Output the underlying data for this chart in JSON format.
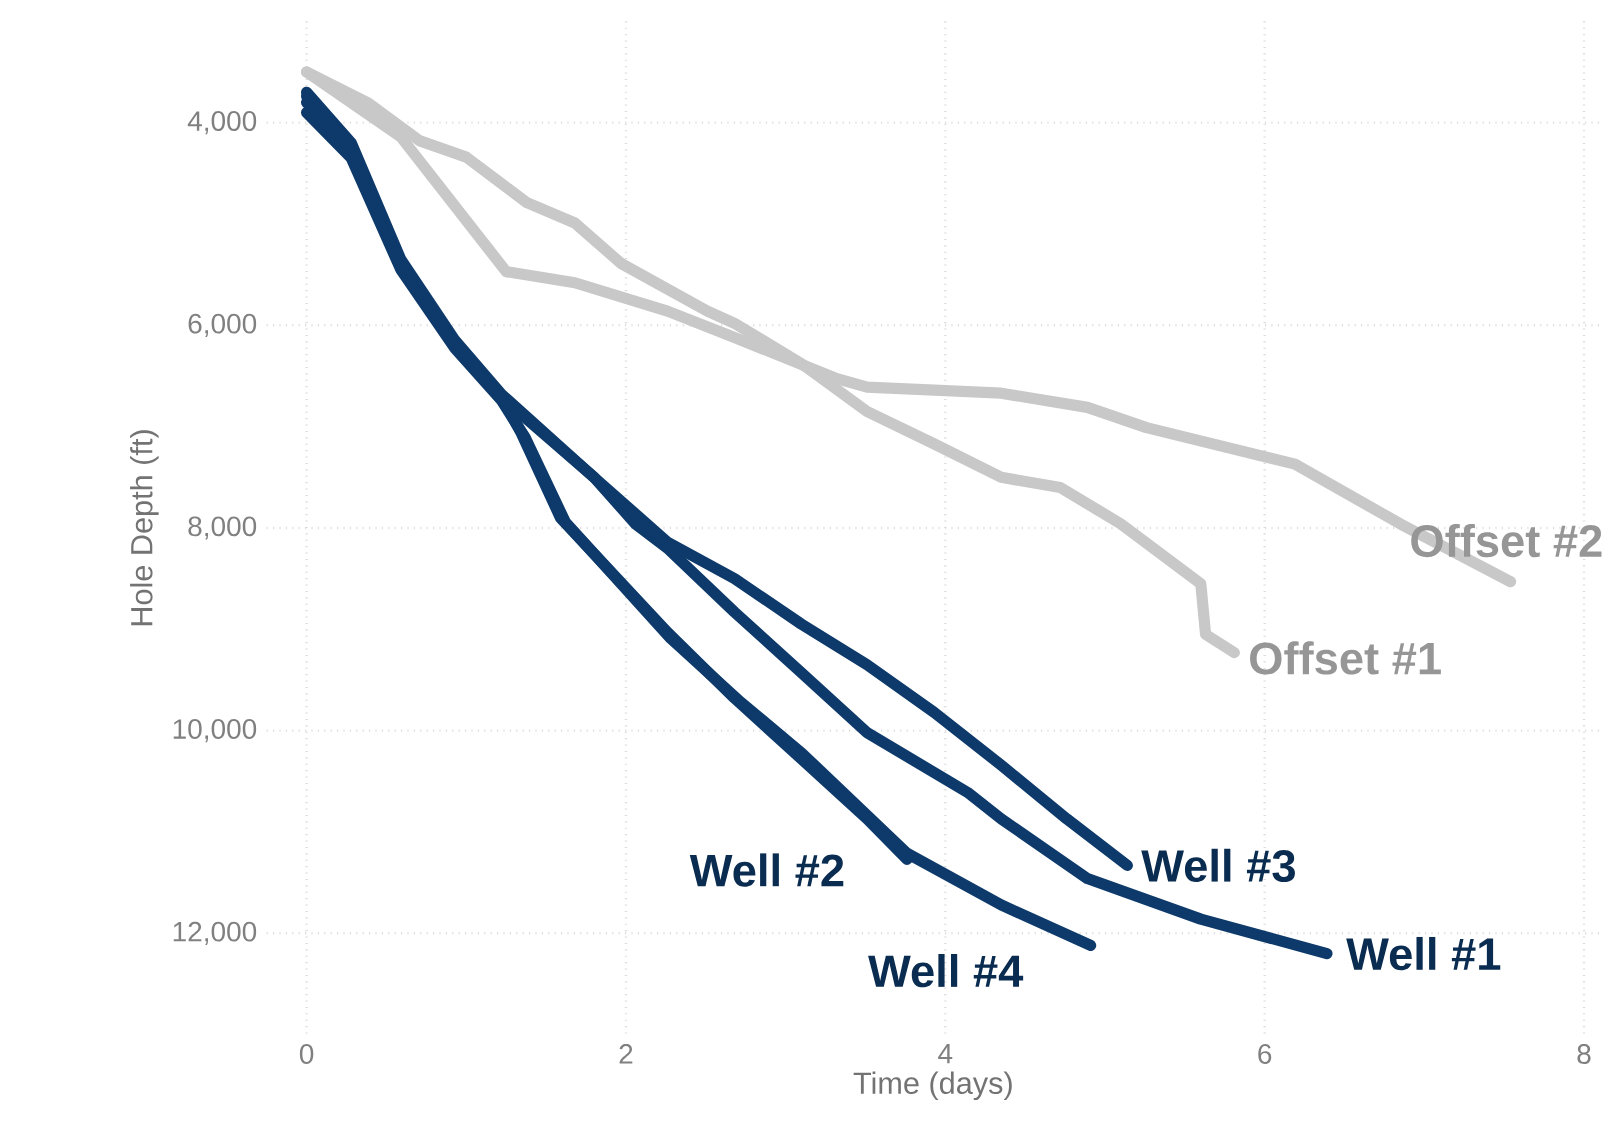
{
  "chart_data": {
    "type": "line",
    "xlabel": "Time (days)",
    "ylabel": "Hole Depth (ft)",
    "xlim": [
      -0.25,
      8.1
    ],
    "ylim": [
      13000,
      3000
    ],
    "xticks": [
      0,
      2,
      4,
      6,
      8
    ],
    "yticks": [
      {
        "value": 4000,
        "label": "4,000"
      },
      {
        "value": 6000,
        "label": "6,000"
      },
      {
        "value": 8000,
        "label": "8,000"
      },
      {
        "value": 10000,
        "label": "10,000"
      },
      {
        "value": 12000,
        "label": "12,000"
      }
    ],
    "grid": true,
    "marker": "none",
    "line_style": "solid",
    "series": [
      {
        "name": "Offset #1",
        "color": "#c8c8c8",
        "x": [
          0,
          0.38,
          0.71,
          1.0,
          1.38,
          1.68,
          1.97,
          2.51,
          2.68,
          3.1,
          3.51,
          3.93,
          4.35,
          4.72,
          5.1,
          5.6,
          5.63,
          5.81
        ],
        "values": [
          3500,
          3800,
          4180,
          4340,
          4790,
          4990,
          5390,
          5860,
          5980,
          6380,
          6850,
          7170,
          7500,
          7600,
          7960,
          8550,
          9050,
          9230
        ]
      },
      {
        "name": "Offset #2",
        "color": "#c8c8c8",
        "x": [
          0,
          0.59,
          1.25,
          1.68,
          2.26,
          2.68,
          3.31,
          3.51,
          4.35,
          4.89,
          5.26,
          6.19,
          6.85,
          7.54
        ],
        "values": [
          3500,
          4140,
          5470,
          5580,
          5860,
          6120,
          6520,
          6610,
          6670,
          6810,
          7010,
          7370,
          7960,
          8530
        ]
      },
      {
        "name": "Well #1",
        "color": "#0d3a6b",
        "x": [
          0,
          0.28,
          0.59,
          0.93,
          1.22,
          1.8,
          2.06,
          2.26,
          2.68,
          3.1,
          3.51,
          4.14,
          4.35,
          4.89,
          5.6,
          6.39
        ],
        "values": [
          3740,
          4240,
          5390,
          6180,
          6710,
          7500,
          7960,
          8200,
          8830,
          9430,
          10020,
          10610,
          10870,
          11460,
          11860,
          12200
        ]
      },
      {
        "name": "Well #2",
        "color": "#0d3a6b",
        "x": [
          0,
          0.28,
          0.59,
          0.93,
          1.22,
          1.34,
          1.59,
          2.26,
          2.68,
          3.1,
          3.51,
          3.76
        ],
        "values": [
          3800,
          4290,
          5420,
          6200,
          6710,
          7050,
          7900,
          9030,
          9680,
          10280,
          10870,
          11270
        ]
      },
      {
        "name": "Well #3",
        "color": "#0d3a6b",
        "x": [
          0,
          0.28,
          0.59,
          0.93,
          1.22,
          1.8,
          2.26,
          2.68,
          3.1,
          3.51,
          3.93,
          4.35,
          4.76,
          5.14
        ],
        "values": [
          3700,
          4200,
          5350,
          6150,
          6680,
          7500,
          8140,
          8500,
          8950,
          9350,
          9820,
          10340,
          10870,
          11330
        ]
      },
      {
        "name": "Well #4",
        "color": "#0d3a6b",
        "x": [
          0,
          0.28,
          0.59,
          0.93,
          1.22,
          1.37,
          1.62,
          2.28,
          2.72,
          3.1,
          3.76,
          4.35,
          4.91
        ],
        "values": [
          3900,
          4350,
          5450,
          6230,
          6740,
          7110,
          7940,
          9090,
          9720,
          10220,
          11210,
          11720,
          12120
        ]
      }
    ]
  }
}
